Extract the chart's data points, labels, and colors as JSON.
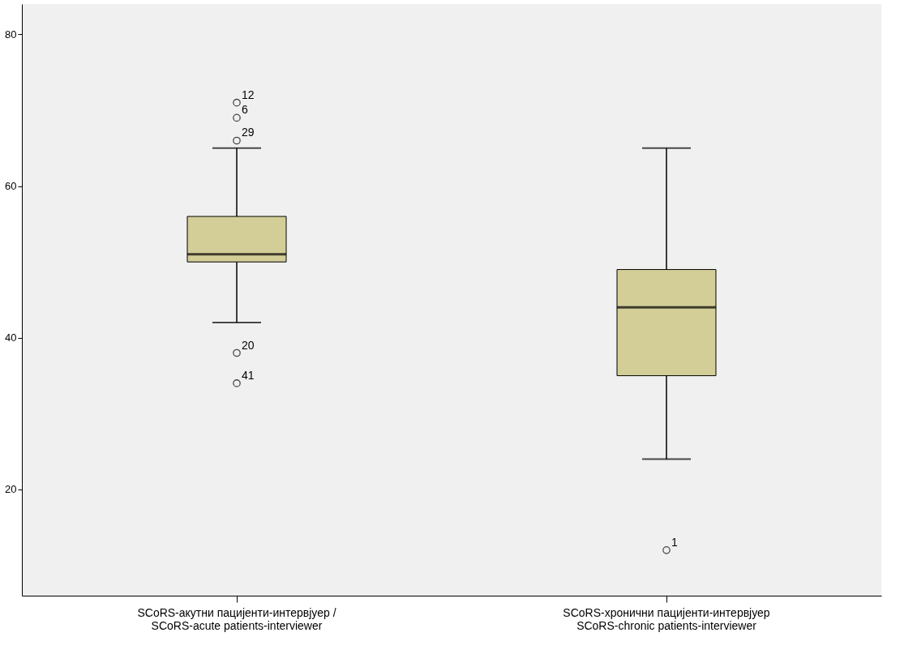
{
  "chart_data": {
    "type": "box",
    "categories": [
      "SCoRS-акутни пацијенти-интервјуер /\nSCoRS-acute patients-interviewer",
      "SCoRS-хронични пацијенти-интервјуер\nSCoRS-chronic patients-interviewer"
    ],
    "boxes": [
      {
        "low": 42,
        "q1": 50,
        "median": 51,
        "q3": 56,
        "high": 65,
        "outliers": [
          71,
          69,
          66,
          38,
          34
        ]
      },
      {
        "low": 24,
        "q1": 35,
        "median": 44,
        "q3": 49,
        "high": 65,
        "outliers": [
          12
        ]
      }
    ],
    "color": "#d3ce97",
    "ylim": [
      6,
      84
    ],
    "yticks": [
      20,
      40,
      60,
      80
    ],
    "grid": false,
    "annotations": [
      "12",
      "6",
      "29",
      "20",
      "41",
      "1"
    ]
  }
}
